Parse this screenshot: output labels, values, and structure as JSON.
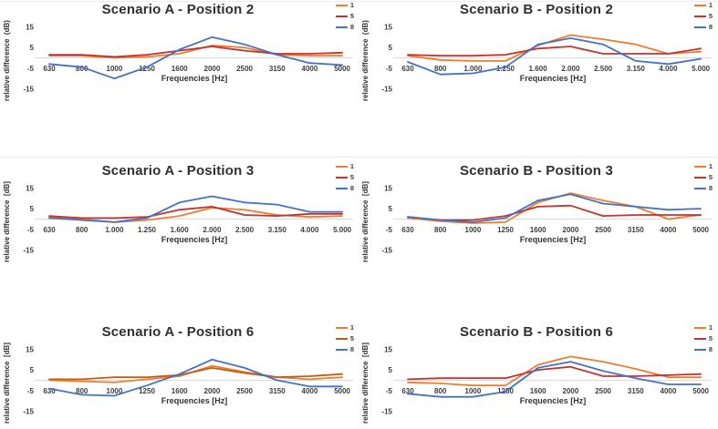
{
  "figure": {
    "background": "#ffffff",
    "separator_color": "#ececec",
    "zero_line_color": "#d9d9d9"
  },
  "axis": {
    "y_ticks": [
      15,
      5,
      -5,
      -15
    ],
    "ylim": [
      -20,
      20
    ],
    "grid": false
  },
  "chart_data": [
    {
      "type": "line",
      "title": "Scenario A - Position 2",
      "ylabel": "relative difference  (dB)",
      "xlabel": "Frequencies [Hz]",
      "legend_position": "top-right",
      "categories": [
        "630",
        "800",
        "1000",
        "1250",
        "1600",
        "2000",
        "2500",
        "3150",
        "4000",
        "5000"
      ],
      "series": [
        {
          "name": "1",
          "color": "#ED7D31",
          "values": [
            1,
            1,
            0,
            0.5,
            2,
            6,
            5,
            1.5,
            1,
            1
          ]
        },
        {
          "name": "5",
          "color": "#C23431",
          "values": [
            1.5,
            1.5,
            0.5,
            1.5,
            3.5,
            5.5,
            3.5,
            2,
            2,
            2.5
          ]
        },
        {
          "name": "8",
          "color": "#4472C4",
          "values": [
            -3,
            -4.5,
            -10,
            -4.5,
            4,
            10,
            6.5,
            1.5,
            -2.5,
            -3.5
          ]
        }
      ]
    },
    {
      "type": "line",
      "title": "Scenario B - Position 2",
      "ylabel": "relative difference  (dB)",
      "xlabel": "Frequencies [Hz]",
      "legend_position": "top-right",
      "categories": [
        "630",
        "800",
        "1.000",
        "1.250",
        "1.600",
        "2.000",
        "2.500",
        "3.150",
        "4.000",
        "5.000"
      ],
      "series": [
        {
          "name": "1",
          "color": "#ED7D31",
          "values": [
            1,
            -1,
            -1.5,
            -1.5,
            6,
            11,
            9,
            6.5,
            2,
            3
          ]
        },
        {
          "name": "5",
          "color": "#C23431",
          "values": [
            1.5,
            1,
            1,
            1.5,
            4.5,
            5.5,
            2,
            2,
            2,
            4.5
          ]
        },
        {
          "name": "8",
          "color": "#4472C4",
          "values": [
            -2,
            -8,
            -7.5,
            -4.5,
            6.5,
            9.5,
            6.5,
            -1.5,
            -3,
            -0.5
          ]
        }
      ]
    },
    {
      "type": "line",
      "title": "Scenario A - Position 3",
      "ylabel": "relative difference  [dB]",
      "xlabel": "Frequencies [Hz]",
      "legend_position": "top-right",
      "categories": [
        "630",
        "800",
        "1.000",
        "1.250",
        "1.600",
        "2.000",
        "2.500",
        "3.150",
        "4.000",
        "5.000"
      ],
      "series": [
        {
          "name": "1",
          "color": "#ED7D31",
          "values": [
            1,
            0,
            -1.5,
            -0.5,
            1.5,
            5.5,
            4.5,
            2,
            1,
            1.5
          ]
        },
        {
          "name": "5",
          "color": "#C23431",
          "values": [
            1.5,
            0.5,
            0.5,
            1,
            4.5,
            6,
            2,
            1.5,
            2.5,
            2.5
          ]
        },
        {
          "name": "8",
          "color": "#4472C4",
          "values": [
            0.5,
            -0.5,
            -1.5,
            0.5,
            8,
            11,
            8,
            7,
            3.5,
            3.5
          ]
        }
      ]
    },
    {
      "type": "line",
      "title": "Scenario B - Position 3",
      "ylabel": "relative difference  [dB]",
      "xlabel": "Frequencies [Hz]",
      "legend_position": "top-right",
      "categories": [
        "630",
        "800",
        "1000",
        "1250",
        "1600",
        "2000",
        "2500",
        "3150",
        "4000",
        "5000"
      ],
      "series": [
        {
          "name": "1",
          "color": "#ED7D31",
          "values": [
            0.5,
            -1,
            -2,
            -1.5,
            8,
            12.5,
            9,
            6,
            0,
            2
          ]
        },
        {
          "name": "5",
          "color": "#C23431",
          "values": [
            1,
            -0.5,
            -0.5,
            1.5,
            6,
            6.5,
            1.5,
            2,
            2,
            2
          ]
        },
        {
          "name": "8",
          "color": "#4472C4",
          "values": [
            1,
            -0.5,
            -1.5,
            0.5,
            9,
            12,
            7.5,
            6,
            4.5,
            5
          ]
        }
      ]
    },
    {
      "type": "line",
      "title": "Scenario A - Position 6",
      "ylabel": "relative difference  [dB]",
      "xlabel": "Frequencies [Hz]",
      "legend_position": "top-right",
      "categories": [
        "630",
        "800",
        "1000",
        "1250",
        "1600",
        "2000",
        "2500",
        "3150",
        "4000",
        "5000"
      ],
      "series": [
        {
          "name": "1",
          "color": "#ED7D31",
          "values": [
            0,
            -0.5,
            -1,
            0.5,
            2,
            7,
            4,
            1.5,
            0.5,
            1.5
          ]
        },
        {
          "name": "5",
          "color": "#C55A11",
          "values": [
            0.5,
            0.5,
            1.5,
            1.5,
            2.5,
            6,
            3.5,
            1.5,
            2,
            3
          ]
        },
        {
          "name": "8",
          "color": "#4472C4",
          "values": [
            -4,
            -7,
            -7.5,
            -2.5,
            3,
            10,
            6,
            0,
            -3,
            -3
          ]
        }
      ]
    },
    {
      "type": "line",
      "title": "Scenario B - Position 6",
      "ylabel": "relative difference  [dB]",
      "xlabel": "Frequencies [Hz]",
      "legend_position": "top-right",
      "categories": [
        "630",
        "800",
        "1000",
        "1250",
        "1600",
        "2000",
        "2500",
        "3150",
        "4000",
        "5000"
      ],
      "series": [
        {
          "name": "1",
          "color": "#ED7D31",
          "values": [
            -1,
            -1.5,
            -2.5,
            -2.5,
            7.5,
            11.5,
            9,
            5.5,
            1.5,
            1.5
          ]
        },
        {
          "name": "5",
          "color": "#C23431",
          "values": [
            0.5,
            1,
            1,
            1,
            5,
            6.5,
            2,
            2,
            2.5,
            3
          ]
        },
        {
          "name": "8",
          "color": "#4472C4",
          "values": [
            -6.5,
            -8,
            -8,
            -5.5,
            6,
            9,
            4.5,
            1,
            -2,
            -2
          ]
        }
      ]
    }
  ]
}
